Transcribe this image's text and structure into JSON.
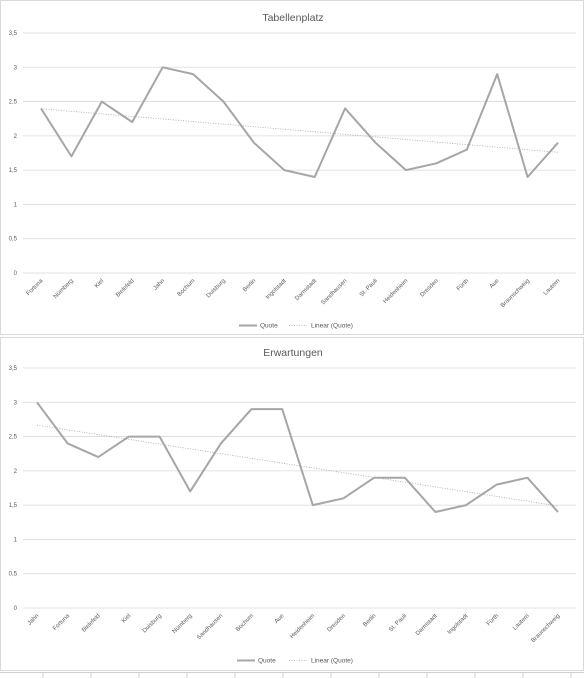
{
  "chart_data": [
    {
      "type": "line",
      "title": "Tabellenplatz",
      "categories": [
        "Fortuna",
        "Nürnberg",
        "Kiel",
        "Bielefeld",
        "Jahn",
        "Bochum",
        "Duisburg",
        "Berlin",
        "Ingolstadt",
        "Darmstadt",
        "Sandhausen",
        "St. Pauli",
        "Heidenheim",
        "Dresden",
        "Fürth",
        "Aue",
        "Braunschweig",
        "Lautern"
      ],
      "series": [
        {
          "name": "Quote",
          "values": [
            2.4,
            1.7,
            2.5,
            2.2,
            3.0,
            2.9,
            2.5,
            1.9,
            1.5,
            1.4,
            2.4,
            1.9,
            1.5,
            1.6,
            1.8,
            2.9,
            1.4,
            1.9
          ],
          "color": "#a6a6a6"
        }
      ],
      "trendline": {
        "name": "Linear (Quote)",
        "type": "linear",
        "color": "#a6a6a6"
      },
      "yticks": [
        "0",
        "0,5",
        "1",
        "1,5",
        "2",
        "2,5",
        "3",
        "3,5"
      ],
      "ylim": [
        0,
        3.5
      ],
      "grid": true,
      "legend": "bottom",
      "xlabel": "",
      "ylabel": ""
    },
    {
      "type": "line",
      "title": "Erwartungen",
      "categories": [
        "Jahn",
        "Fortuna",
        "Bielefeld",
        "Kiel",
        "Duisburg",
        "Nürnberg",
        "Sandhausen",
        "Bochum",
        "Aue",
        "Heidenheim",
        "Dresden",
        "Berlin",
        "St. Pauli",
        "Darmstadt",
        "Ingolstadt",
        "Fürth",
        "Lautern",
        "Braunschweig"
      ],
      "series": [
        {
          "name": "Quote",
          "values": [
            3.0,
            2.4,
            2.2,
            2.5,
            2.5,
            1.7,
            2.4,
            2.9,
            2.9,
            1.5,
            1.6,
            1.9,
            1.9,
            1.4,
            1.5,
            1.8,
            1.9,
            1.4
          ],
          "color": "#a6a6a6"
        }
      ],
      "trendline": {
        "name": "Linear (Quote)",
        "type": "linear",
        "color": "#a6a6a6"
      },
      "yticks": [
        "0",
        "0,5",
        "1",
        "1,5",
        "2",
        "2,5",
        "3",
        "3,5"
      ],
      "ylim": [
        0,
        3.5
      ],
      "grid": true,
      "legend": "bottom",
      "xlabel": "",
      "ylabel": ""
    }
  ],
  "colors": {
    "gridline": "#d9d9d9",
    "series": "#a6a6a6",
    "text": "#595959",
    "border": "#d9d9d9"
  }
}
